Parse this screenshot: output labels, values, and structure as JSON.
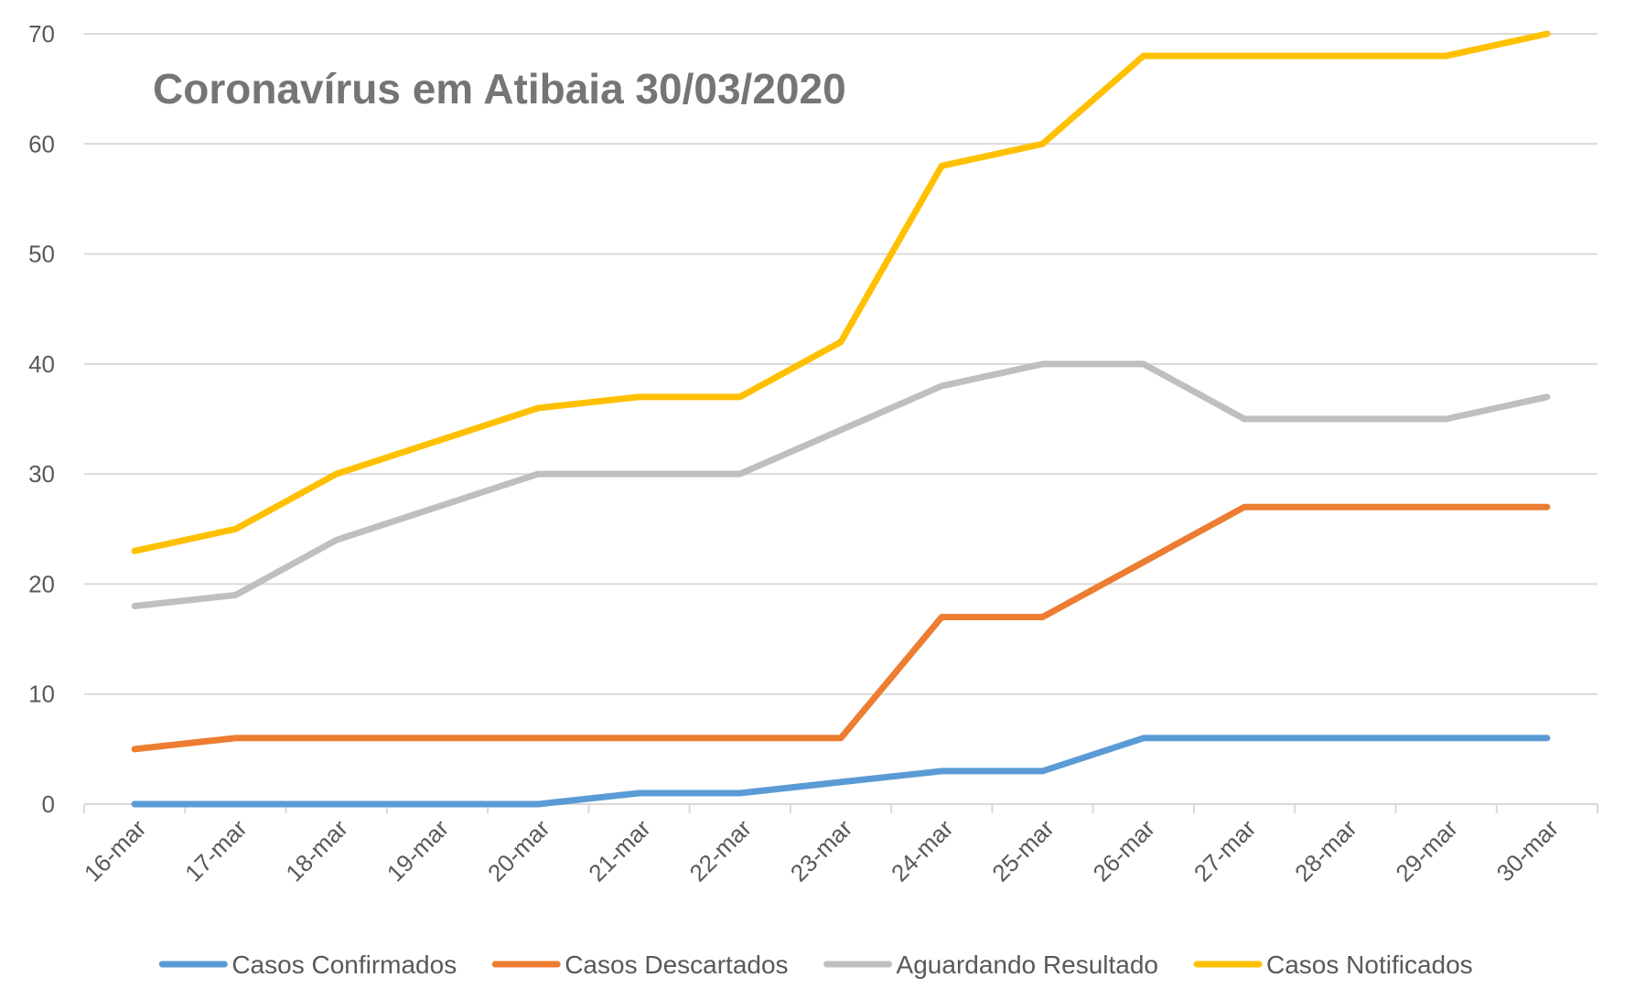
{
  "chart_data": {
    "type": "line",
    "title": "Coronavírus em Atibaia 30/03/2020",
    "xlabel": "",
    "ylabel": "",
    "ylim": [
      0,
      70
    ],
    "yticks": [
      0,
      10,
      20,
      30,
      40,
      50,
      60,
      70
    ],
    "grid": true,
    "legend_position": "bottom",
    "categories": [
      "16-mar",
      "17-mar",
      "18-mar",
      "19-mar",
      "20-mar",
      "21-mar",
      "22-mar",
      "23-mar",
      "24-mar",
      "25-mar",
      "26-mar",
      "27-mar",
      "28-mar",
      "29-mar",
      "30-mar"
    ],
    "series": [
      {
        "name": "Casos Confirmados",
        "color": "#5B9BD5",
        "values": [
          0,
          0,
          0,
          0,
          0,
          1,
          1,
          2,
          3,
          3,
          6,
          6,
          6,
          6,
          6
        ]
      },
      {
        "name": "Casos Descartados",
        "color": "#ED7D31",
        "values": [
          5,
          6,
          6,
          6,
          6,
          6,
          6,
          6,
          17,
          17,
          22,
          27,
          27,
          27,
          27
        ]
      },
      {
        "name": "Aguardando Resultado",
        "color": "#BFBFBF",
        "values": [
          18,
          19,
          24,
          27,
          30,
          30,
          30,
          34,
          38,
          40,
          40,
          35,
          35,
          35,
          37
        ]
      },
      {
        "name": "Casos Notificados",
        "color": "#FFC000",
        "values": [
          23,
          25,
          30,
          33,
          36,
          37,
          37,
          42,
          58,
          60,
          68,
          68,
          68,
          68,
          70
        ]
      }
    ]
  }
}
